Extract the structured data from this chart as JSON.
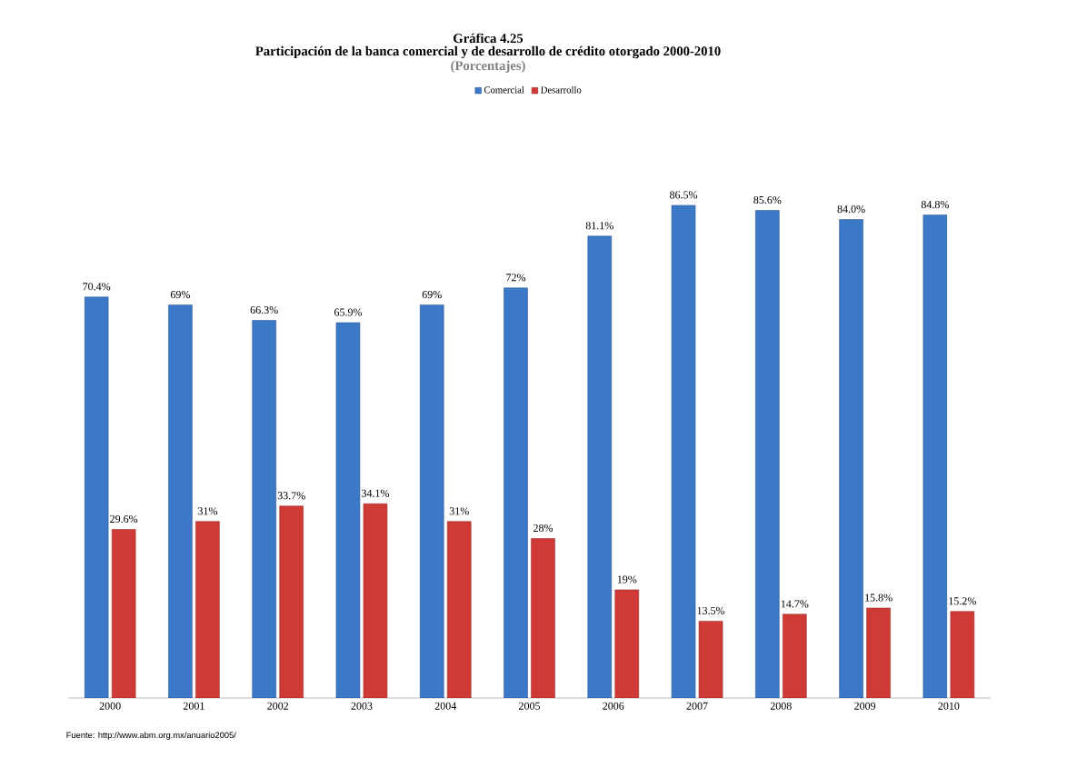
{
  "chart_data": {
    "type": "bar",
    "title": "Gráfica 4.25",
    "subtitle": "Participación de la banca comercial y de desarrollo de crédito otorgado 2000-2010",
    "annotations": [
      "(Porcentajes)",
      "Fuente:  http://www.abm.org.mx/anuario2005/"
    ],
    "categories": [
      "2000",
      "2001",
      "2002",
      "2003",
      "2004",
      "2005",
      "2006",
      "2007",
      "2008",
      "2009",
      "2010"
    ],
    "series": [
      {
        "name": "Comercial",
        "color": "#3b78c8",
        "values": [
          70.4,
          69,
          66.3,
          65.9,
          69,
          72,
          81.1,
          86.5,
          85.6,
          84.0,
          84.8
        ],
        "value_labels": [
          "70.4%",
          "69%",
          "66.3%",
          "65.9%",
          "69%",
          "72%",
          "81.1%",
          "86.5%",
          "85.6%",
          "84.0%",
          "84.8%"
        ]
      },
      {
        "name": "Desarrollo",
        "color": "#d03a36",
        "values": [
          29.6,
          31,
          33.7,
          34.1,
          31,
          28,
          19,
          13.5,
          14.7,
          15.8,
          15.2
        ],
        "value_labels": [
          "29.6%",
          "31%",
          "33.7%",
          "34.1%",
          "31%",
          "28%",
          "19%",
          "13.5%",
          "14.7%",
          "15.8%",
          "15.2%"
        ]
      }
    ],
    "legend": "top"
  }
}
